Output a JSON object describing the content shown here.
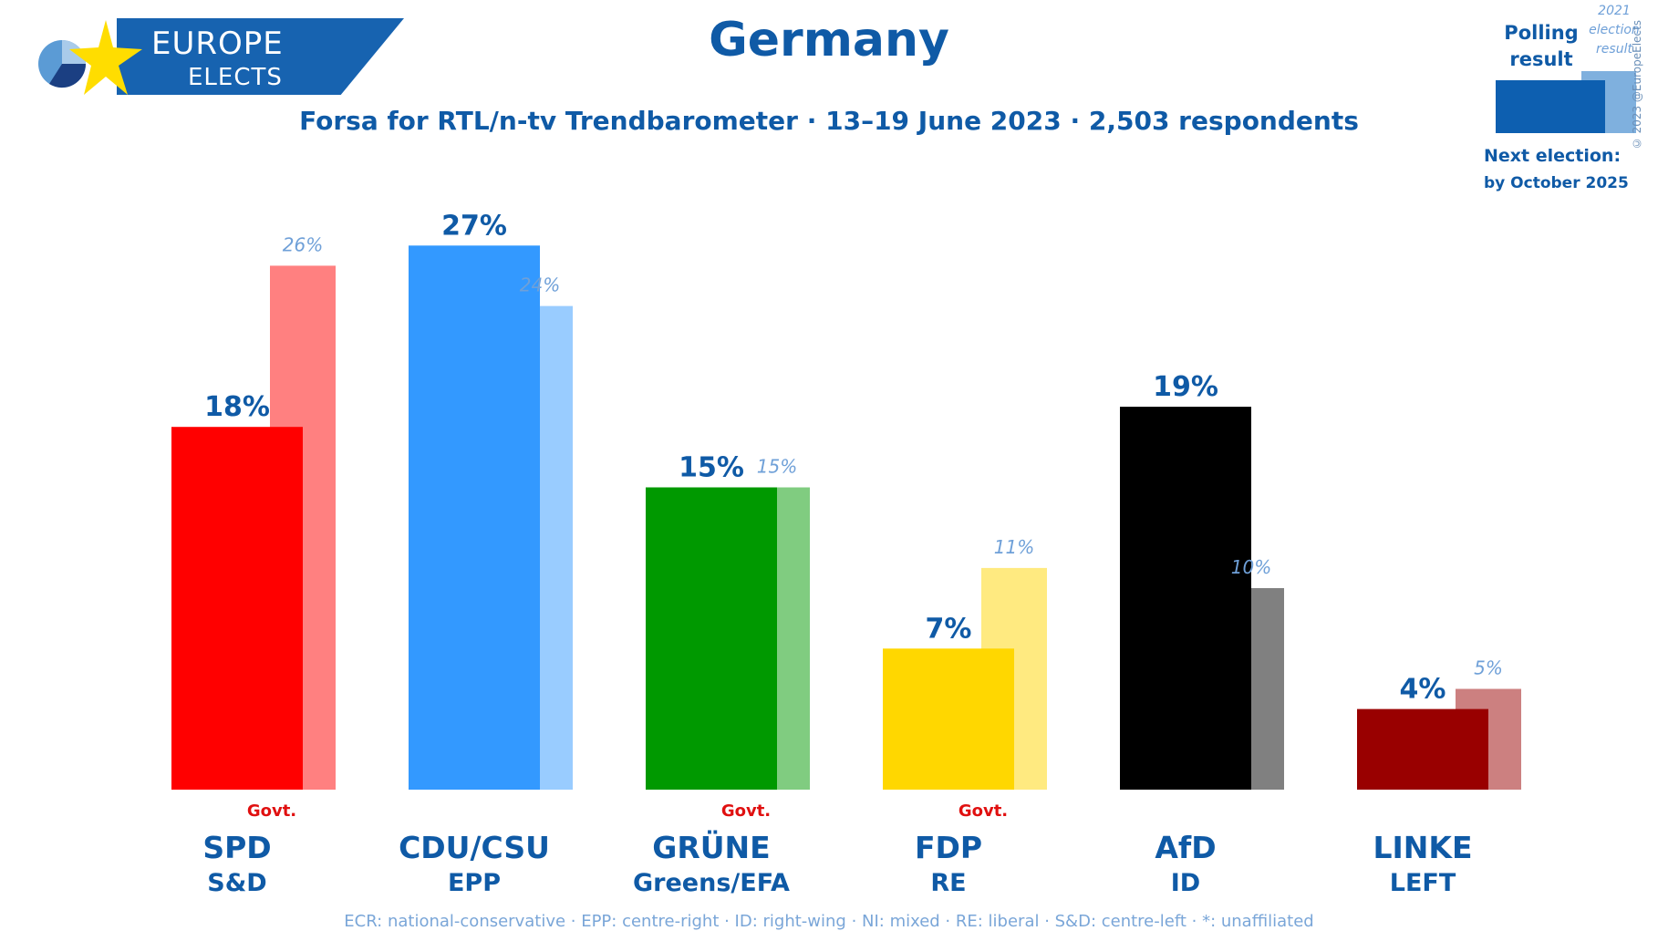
{
  "brand": {
    "line1": "EUROPE",
    "line2": "ELECTS"
  },
  "header": {
    "title": "Germany",
    "subtitle": "Forsa for RTL/n-tv Trendbarometer · 13–19 June 2023 · 2,503 respondents"
  },
  "legend": {
    "polling_label": "Polling result",
    "election_label": "2021 election result",
    "next_election_label": "Next election:",
    "next_election_date": "by October 2025",
    "copyright": "© 2023 @EuropeElects",
    "polling_color": "#0d5fb0",
    "election_color": "#7fb0de"
  },
  "footnote": "ECR: national-conservative · EPP: centre-right · ID: right-wing · NI: mixed · RE: liberal · S&D: centre-left · *: unaffiliated",
  "chart_data": {
    "type": "bar",
    "categories": [
      "SPD",
      "CDU/CSU",
      "GRÜNE",
      "FDP",
      "AfD",
      "LINKE"
    ],
    "groups": [
      "S&D",
      "EPP",
      "Greens/EFA",
      "RE",
      "ID",
      "LEFT"
    ],
    "government": [
      "Govt.",
      "",
      "Govt.",
      "Govt.",
      "",
      ""
    ],
    "series": [
      {
        "name": "Polling result",
        "values": [
          18,
          27,
          15,
          7,
          19,
          4
        ],
        "labels": [
          "18%",
          "27%",
          "15%",
          "7%",
          "19%",
          "4%"
        ]
      },
      {
        "name": "2021 election result",
        "values": [
          26,
          24,
          15,
          11,
          10,
          5
        ],
        "labels": [
          "26%",
          "24%",
          "15%",
          "11%",
          "10%",
          "5%"
        ]
      }
    ],
    "colors": {
      "poll": [
        "#ff0000",
        "#3399ff",
        "#009900",
        "#ffd700",
        "#000000",
        "#990000"
      ],
      "election": [
        "#ff8080",
        "#99ccff",
        "#80cc80",
        "#ffea80",
        "#808080",
        "#cc8080"
      ]
    },
    "ylim": [
      0,
      28
    ]
  }
}
